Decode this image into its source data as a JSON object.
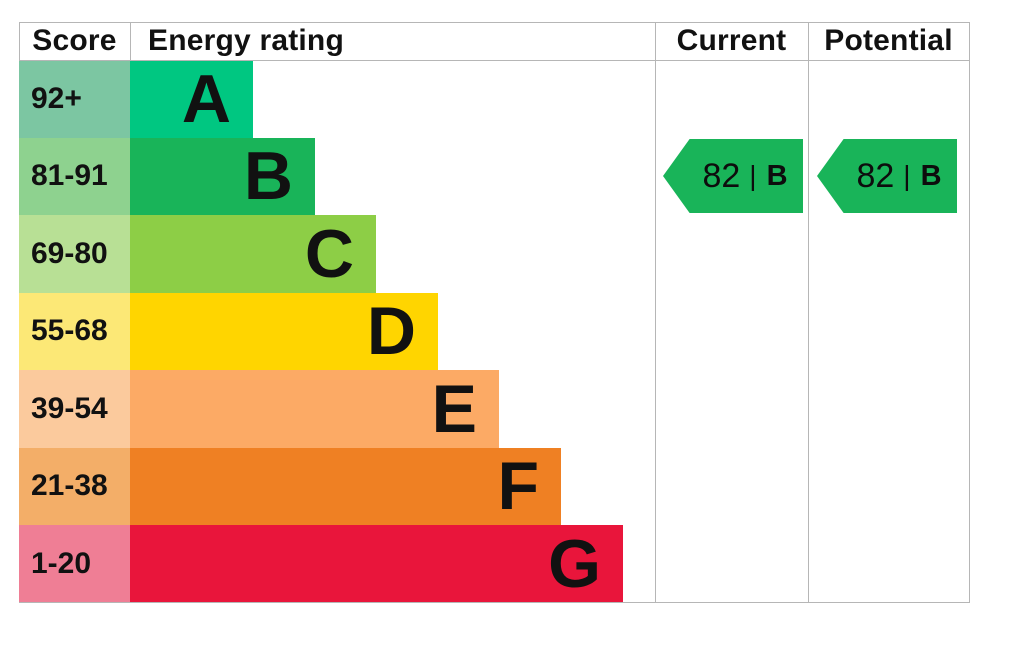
{
  "header": {
    "score": "Score",
    "energy_rating": "Energy rating",
    "current": "Current",
    "potential": "Potential"
  },
  "bands": [
    {
      "score_label": "92+",
      "letter": "A",
      "bar_color": "#00c781",
      "score_cell_color": "#7cc6a2"
    },
    {
      "score_label": "81-91",
      "letter": "B",
      "bar_color": "#19b459",
      "score_cell_color": "#8ed28f"
    },
    {
      "score_label": "69-80",
      "letter": "C",
      "bar_color": "#8dce46",
      "score_cell_color": "#b8e095"
    },
    {
      "score_label": "55-68",
      "letter": "D",
      "bar_color": "#ffd500",
      "score_cell_color": "#fce876"
    },
    {
      "score_label": "39-54",
      "letter": "E",
      "bar_color": "#fcaa65",
      "score_cell_color": "#fbca9d"
    },
    {
      "score_label": "21-38",
      "letter": "F",
      "bar_color": "#ef8023",
      "score_cell_color": "#f3ae68"
    },
    {
      "score_label": "1-20",
      "letter": "G",
      "bar_color": "#e9153b",
      "score_cell_color": "#ef7e95"
    }
  ],
  "current_rating": {
    "value": "82",
    "separator": "|",
    "band": "B",
    "arrow_color": "#19b459"
  },
  "potential_rating": {
    "value": "82",
    "separator": "|",
    "band": "B",
    "arrow_color": "#19b459"
  },
  "chart_data": {
    "type": "bar",
    "title": "Energy rating",
    "columns": [
      "Score",
      "Energy rating",
      "Current",
      "Potential"
    ],
    "categories": [
      "A",
      "B",
      "C",
      "D",
      "E",
      "F",
      "G"
    ],
    "score_ranges": [
      "92+",
      "81-91",
      "69-80",
      "55-68",
      "39-54",
      "21-38",
      "1-20"
    ],
    "band_colors": [
      "#00c781",
      "#19b459",
      "#8dce46",
      "#ffd500",
      "#fcaa65",
      "#ef8023",
      "#e9153b"
    ],
    "bar_relative_widths": [
      1,
      1.5,
      2,
      2.5,
      3,
      3.5,
      4
    ],
    "current": {
      "score": 82,
      "band": "B"
    },
    "potential": {
      "score": 82,
      "band": "B"
    },
    "orientation": "horizontal",
    "grid": false,
    "legend_position": "none"
  }
}
